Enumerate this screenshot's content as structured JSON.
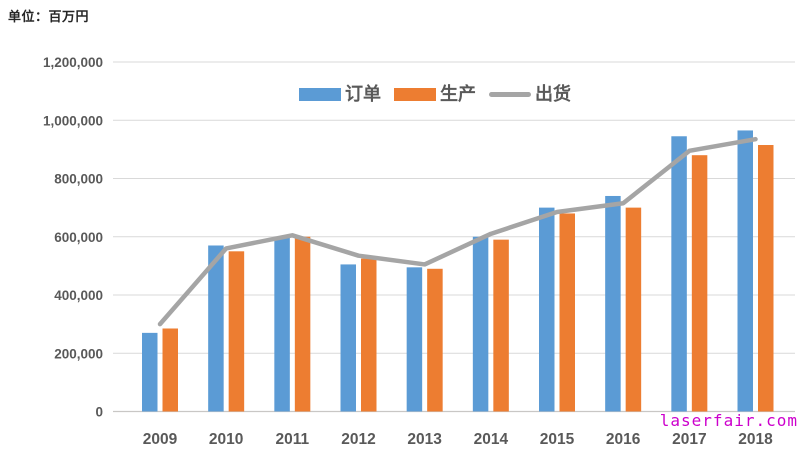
{
  "header": {
    "unit_label": "单位：百万円"
  },
  "watermark": {
    "text": "laserfair.com",
    "color": "#CC00CC"
  },
  "colors": {
    "background": "#FFFFFF",
    "gridline": "#D9D9D9",
    "axis_line": "#C9C7C5",
    "tick_text": "#595959",
    "title_text": "#262626",
    "orders_blue": "#5B9BD5",
    "production_orange": "#ED7D31",
    "shipment_gray": "#A5A5A5"
  },
  "chart_data": {
    "type": "bar",
    "subtype": "combo-bar-line",
    "title": "单位：百万円",
    "unit": "百万円",
    "categories": [
      "2009",
      "2010",
      "2011",
      "2012",
      "2013",
      "2014",
      "2015",
      "2016",
      "2017",
      "2018"
    ],
    "series": [
      {
        "name": "订单",
        "type": "bar",
        "color": "#5B9BD5",
        "values": [
          270000,
          570000,
          600000,
          505000,
          495000,
          600000,
          700000,
          740000,
          945000,
          965000
        ]
      },
      {
        "name": "生产",
        "type": "bar",
        "color": "#ED7D31",
        "values": [
          285000,
          550000,
          600000,
          525000,
          490000,
          590000,
          680000,
          700000,
          880000,
          915000
        ]
      },
      {
        "name": "出货",
        "type": "line",
        "color": "#A5A5A5",
        "values": [
          300000,
          560000,
          605000,
          535000,
          505000,
          610000,
          685000,
          715000,
          895000,
          935000
        ]
      }
    ],
    "ylim": [
      0,
      1200000
    ],
    "ytick_interval": 200000,
    "ytick_labels": [
      "0",
      "200,000",
      "400,000",
      "600,000",
      "800,000",
      "1,000,000",
      "1,200,000"
    ],
    "xlabel": "",
    "ylabel": "",
    "grid": true,
    "legend_position": "top-center"
  }
}
